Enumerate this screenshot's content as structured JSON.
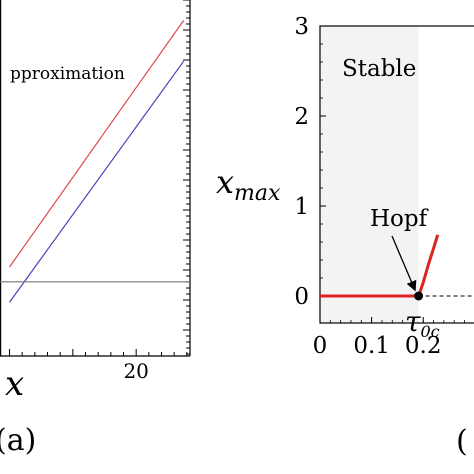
{
  "chart_data": [
    {
      "type": "line",
      "panel_label": "(a)",
      "xlabel": "x",
      "legend_fragment": "pproximation",
      "x_tick_labels": [
        {
          "x": 20,
          "label": "20"
        }
      ],
      "xlim": [
        -1.5,
        28.5
      ],
      "ylim": [
        -1.0,
        8.6
      ],
      "series": [
        {
          "color": "#e04848",
          "x": [
            0.0,
            27.5
          ],
          "y": [
            1.4,
            8.05
          ]
        },
        {
          "color": "#4444bb",
          "x": [
            0.0,
            27.5
          ],
          "y": [
            0.45,
            6.95
          ]
        },
        {
          "color": "#777777",
          "x": [
            -1.5,
            28.5
          ],
          "y": [
            1.0,
            1.0
          ]
        }
      ],
      "grid": false
    },
    {
      "type": "line",
      "panel_label": "(",
      "ylabel": "x_max",
      "xlim": [
        0,
        0.31
      ],
      "ylim": [
        -0.3,
        3.0
      ],
      "x_ticks": [
        0,
        0.1,
        0.2
      ],
      "x_tick_labels": [
        "0",
        "0.1",
        "0.2"
      ],
      "y_ticks": [
        0,
        1,
        2,
        3
      ],
      "y_tick_labels": [
        "0",
        "1",
        "2",
        "3"
      ],
      "annotations": {
        "region": "Stable",
        "hopf": "Hopf",
        "tau_base": "τ",
        "tau_sub": "0c"
      },
      "shaded_region_x": [
        0,
        0.191
      ],
      "critical_x": 0.191,
      "series": [
        {
          "color": "#dd2222",
          "x": [
            0,
            0.191,
            0.2,
            0.21,
            0.22,
            0.228
          ],
          "y": [
            0,
            0,
            0.15,
            0.35,
            0.53,
            0.68
          ]
        }
      ],
      "grid": false
    }
  ]
}
